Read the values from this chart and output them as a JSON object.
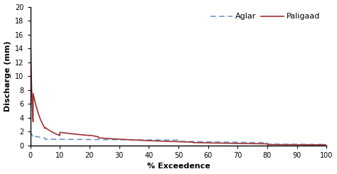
{
  "title": "",
  "xlabel": "% Exceedence",
  "ylabel": "Discharge (mm)",
  "xlim": [
    0,
    100
  ],
  "ylim": [
    0,
    20
  ],
  "yticks": [
    0,
    2,
    4,
    6,
    8,
    10,
    12,
    14,
    16,
    18,
    20
  ],
  "xticks": [
    0,
    10,
    20,
    30,
    40,
    50,
    60,
    70,
    80,
    90,
    100
  ],
  "aglar_color": "#6090CC",
  "paligaad_color": "#A03030",
  "legend_labels": [
    "Aglar",
    "Paligaad"
  ],
  "background_color": "#ffffff",
  "xlabel_fontsize": 8,
  "ylabel_fontsize": 8,
  "tick_fontsize": 7,
  "legend_fontsize": 8
}
